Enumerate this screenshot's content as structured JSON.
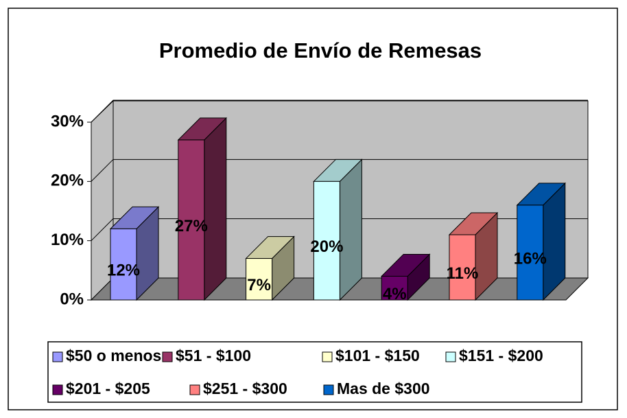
{
  "chart_data": {
    "type": "bar3d",
    "title": "Promedio de Envío de Remesas",
    "series": [
      {
        "name": "$50 o menos",
        "color": "#9999ff",
        "values": [
          12
        ],
        "value_labels": [
          "12%"
        ]
      },
      {
        "name": "$51 - $100",
        "color": "#993366",
        "values": [
          27
        ],
        "value_labels": [
          "27%"
        ]
      },
      {
        "name": "$101 - $150",
        "color": "#ffffcc",
        "values": [
          7
        ],
        "value_labels": [
          "7%"
        ]
      },
      {
        "name": "$151 - $200",
        "color": "#ccffff",
        "values": [
          20
        ],
        "value_labels": [
          "20%"
        ]
      },
      {
        "name": "$201 - $205",
        "color": "#660066",
        "values": [
          4
        ],
        "value_labels": [
          "4%"
        ]
      },
      {
        "name": "$251 - $300",
        "color": "#ff8080",
        "values": [
          11
        ],
        "value_labels": [
          "11%"
        ]
      },
      {
        "name": "Mas de $300",
        "color": "#0066cc",
        "values": [
          16
        ],
        "value_labels": [
          "16%"
        ]
      }
    ],
    "ylim": [
      0,
      30
    ],
    "yticks": [
      {
        "value": 0,
        "label": "0%"
      },
      {
        "value": 10,
        "label": "10%"
      },
      {
        "value": 20,
        "label": "20%"
      },
      {
        "value": 30,
        "label": "30%"
      }
    ],
    "grid": true
  }
}
